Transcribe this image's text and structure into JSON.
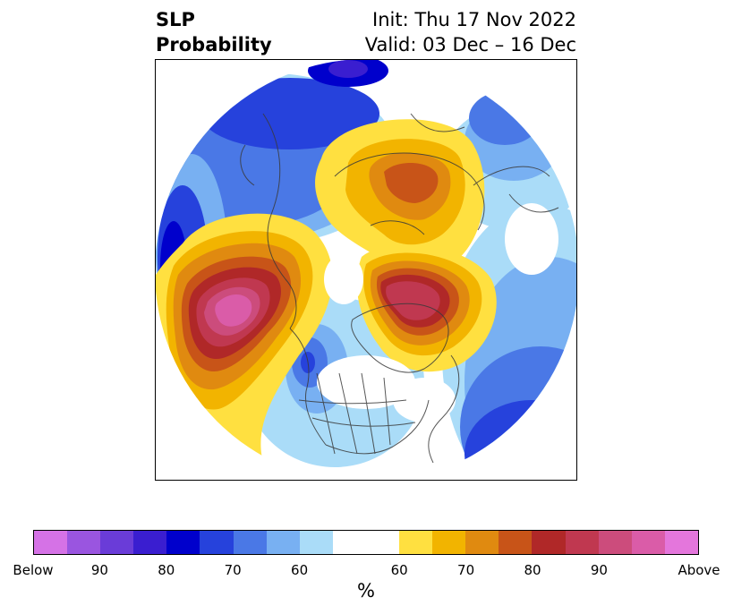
{
  "header": {
    "left_title": "SLP\nProbability",
    "right_title": "Init: Thu 17 Nov 2022\nValid: 03 Dec – 16 Dec"
  },
  "map": {
    "projection": "north-polar-stereographic",
    "overlay": "coastlines-and-borders",
    "features": [
      {
        "name": "Aleutian/North Pacific above-normal center",
        "category": "above",
        "max_prob": "95"
      },
      {
        "name": "Greenland/Baffin above-normal center",
        "category": "above",
        "max_prob": "85"
      },
      {
        "name": "Siberia/Arctic Russia above-normal",
        "category": "above",
        "max_prob": "70"
      },
      {
        "name": "North Atlantic/Europe below-normal",
        "category": "below",
        "max_prob": "80"
      },
      {
        "name": "Western Canada/Pacific NW below-normal",
        "category": "below",
        "max_prob": "80"
      },
      {
        "name": "Bering/Alaska below-normal",
        "category": "below",
        "max_prob": "85"
      }
    ]
  },
  "colorbar": {
    "colors": [
      "#d572e6",
      "#9a55e0",
      "#6a3cd8",
      "#3a1ed0",
      "#0000cc",
      "#2642dc",
      "#4a78e6",
      "#78b0f2",
      "#aadcf8",
      "#ffffff",
      "#ffe040",
      "#f2b400",
      "#e08a10",
      "#c85418",
      "#b02828",
      "#c03850",
      "#cc4c7c",
      "#da5ca8",
      "#e476dc"
    ],
    "tick_labels": [
      "Below",
      "90",
      "80",
      "70",
      "60",
      "60",
      "70",
      "80",
      "90",
      "Above"
    ],
    "units": "%"
  }
}
